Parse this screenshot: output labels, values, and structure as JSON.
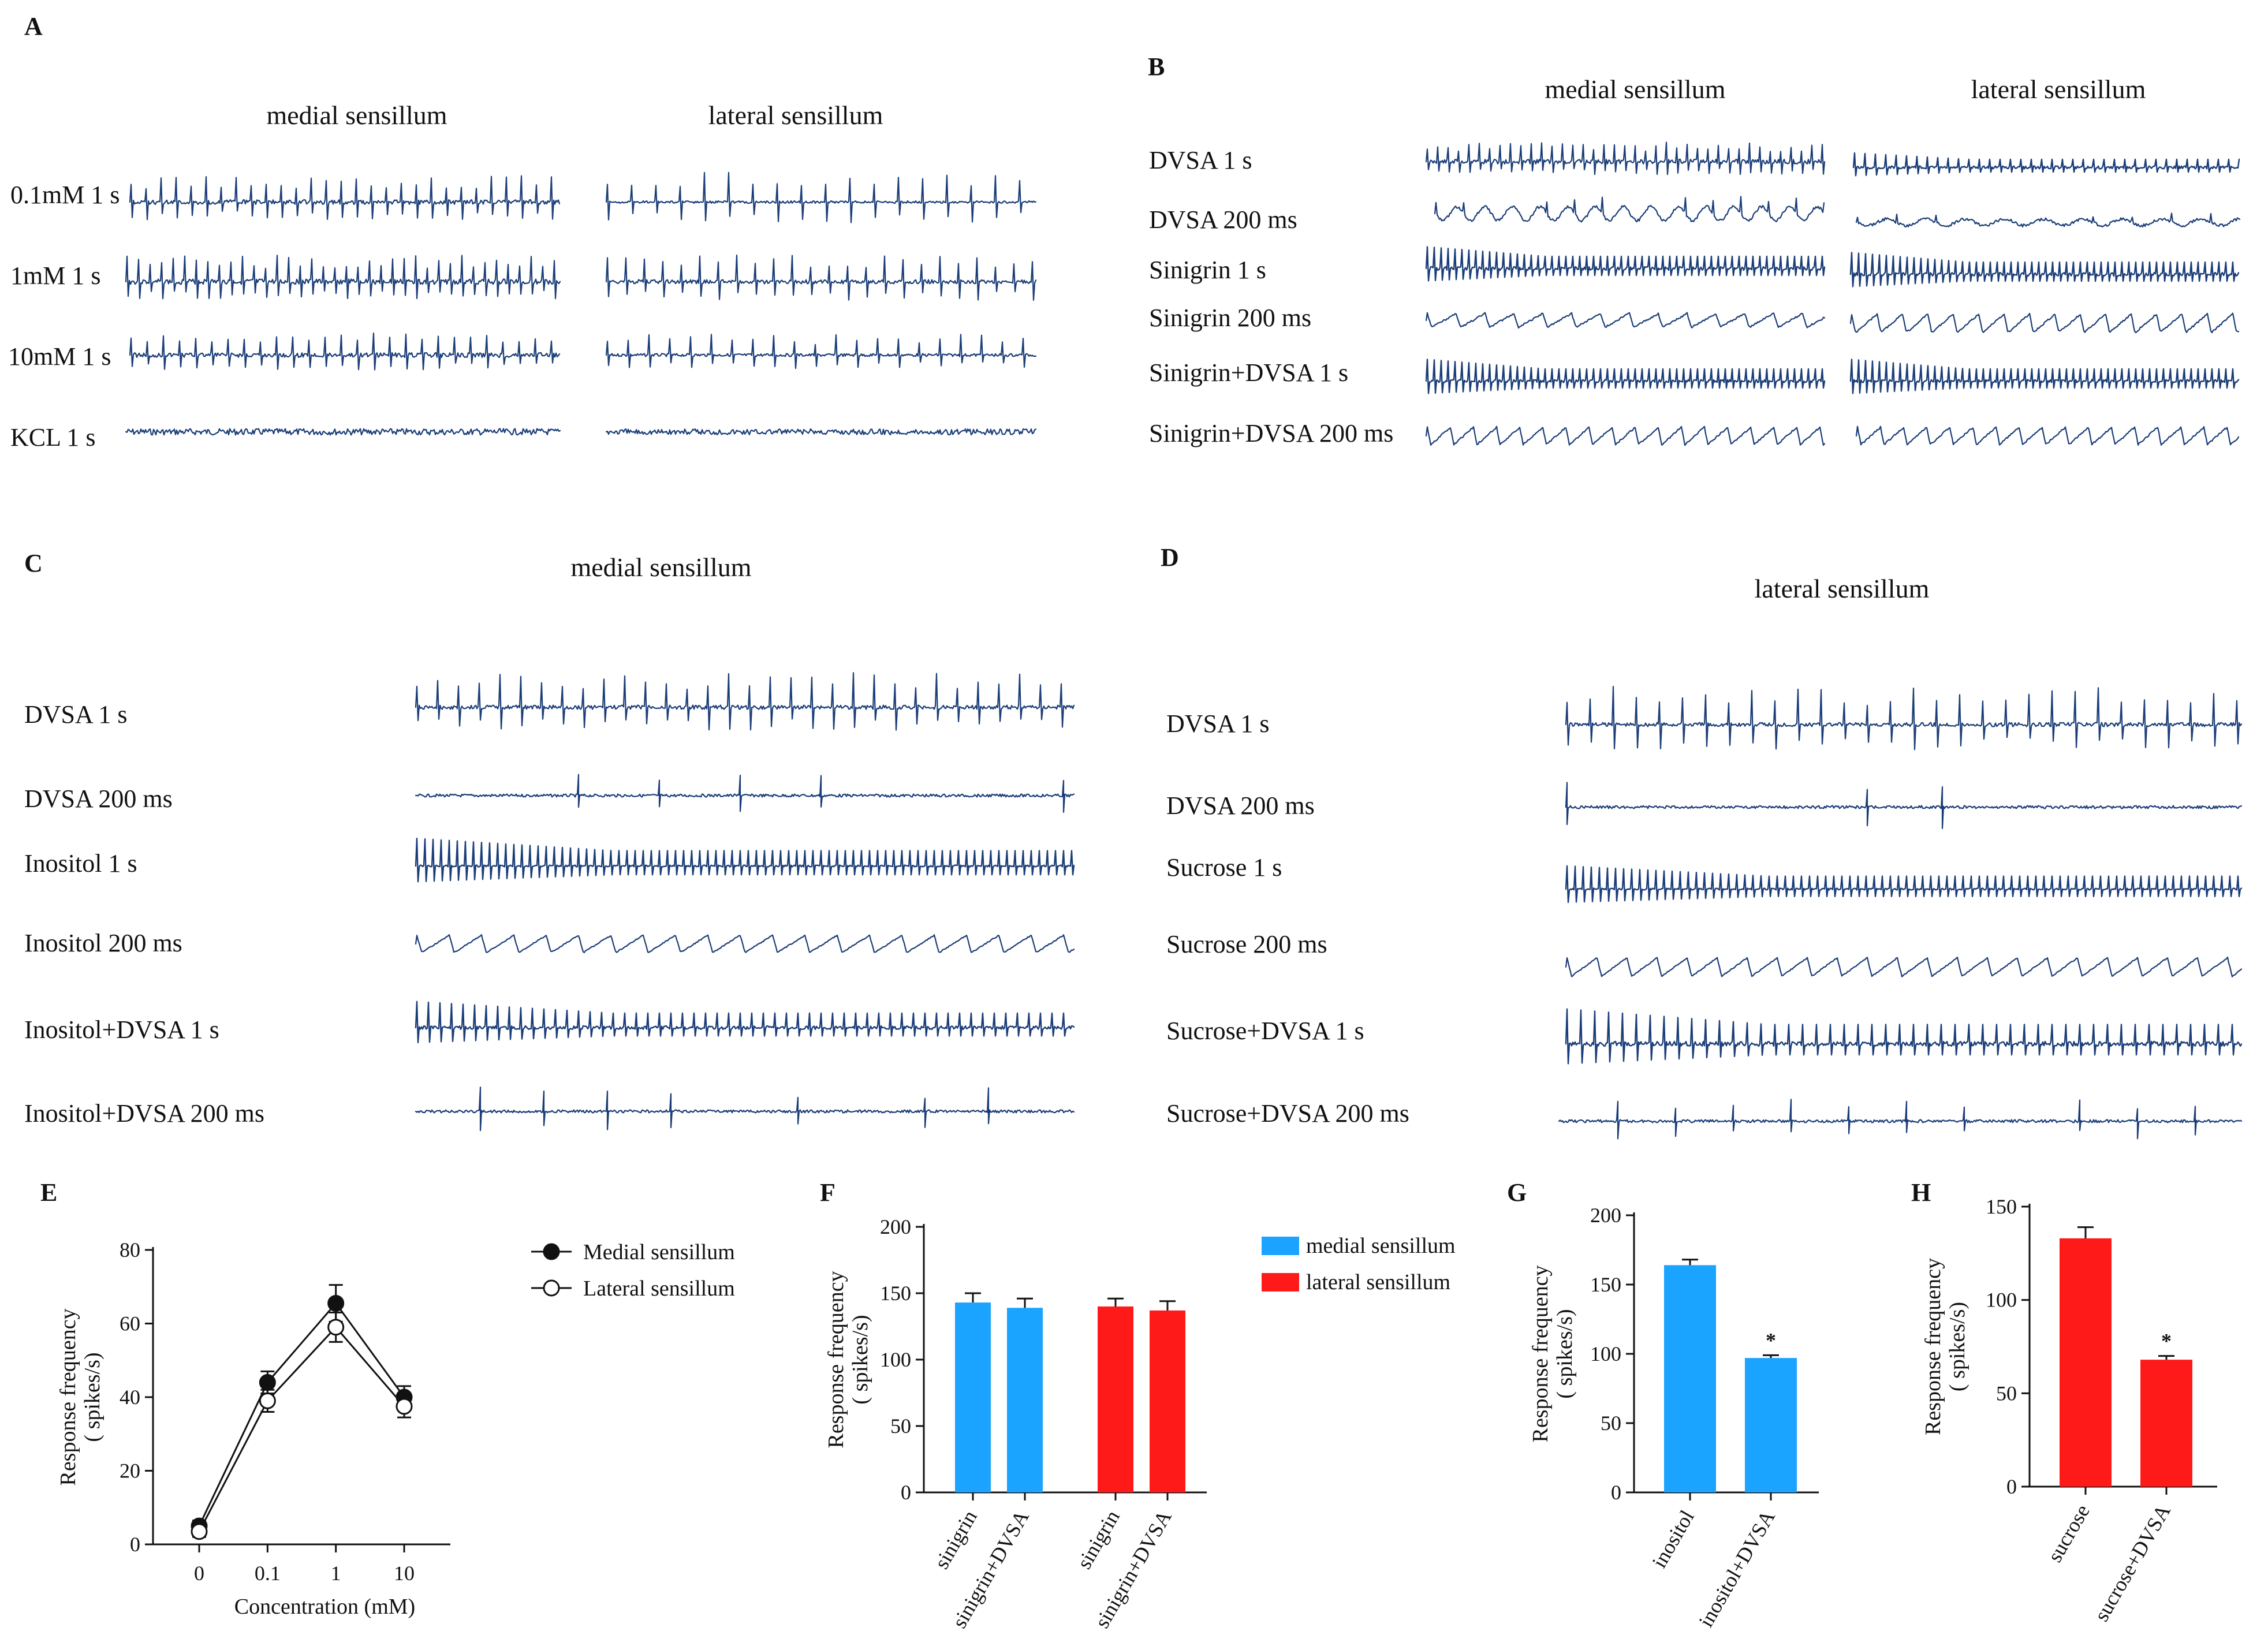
{
  "panels": {
    "A": {
      "label": "A",
      "columns": [
        "medial sensillum",
        "lateral sensillum"
      ],
      "rows": [
        "0.1mM 1 s",
        "1mM 1 s",
        "10mM 1 s",
        "KCL 1 s"
      ]
    },
    "B": {
      "label": "B",
      "columns": [
        "medial sensillum",
        "lateral sensillum"
      ],
      "rows": [
        "DVSA 1 s",
        "DVSA 200 ms",
        "Sinigrin 1 s",
        "Sinigrin 200 ms",
        "Sinigrin+DVSA 1 s",
        "Sinigrin+DVSA 200 ms"
      ]
    },
    "C": {
      "label": "C",
      "title": "medial sensillum",
      "rows": [
        "DVSA 1 s",
        "DVSA 200 ms",
        "Inositol 1 s",
        "Inositol 200 ms",
        "Inositol+DVSA 1 s",
        "Inositol+DVSA 200 ms"
      ]
    },
    "D": {
      "label": "D",
      "title": "lateral sensillum",
      "rows": [
        "DVSA 1 s",
        "DVSA 200 ms",
        "Sucrose 1 s",
        "Sucrose 200 ms",
        "Sucrose+DVSA 1 s",
        "Sucrose+DVSA 200 ms"
      ]
    }
  },
  "colors": {
    "trace": "#1a3d78",
    "medial": "#1aa3ff",
    "lateral": "#ff1a1a",
    "axis": "#111111"
  },
  "chart_data": [
    {
      "panel": "E",
      "type": "line",
      "xlabel": "Concentration (mM)",
      "ylabel": "Response frequency",
      "yunit": "( spikes/s)",
      "categories": [
        "0",
        "0.1",
        "1",
        "10"
      ],
      "ylim": [
        0,
        80
      ],
      "yticks": [
        "0",
        "20",
        "40",
        "60",
        "80"
      ],
      "series": [
        {
          "name": "Medial sensillum",
          "marker": "filled",
          "values": [
            5,
            44,
            65.5,
            40
          ],
          "errors": [
            1.5,
            3,
            5,
            3
          ]
        },
        {
          "name": "Lateral sensillum",
          "marker": "open",
          "values": [
            3.5,
            39,
            59,
            37.5
          ],
          "errors": [
            1.5,
            3,
            4,
            3
          ]
        }
      ]
    },
    {
      "panel": "F",
      "type": "bar",
      "ylabel": "Response frequency",
      "yunit": "( spikes/s)",
      "categories": [
        "sinigrin",
        "sinigrin+DVSA",
        "sinigrin",
        "sinigrin+DVSA"
      ],
      "values": [
        143,
        139,
        140,
        137
      ],
      "errors": [
        7,
        7,
        6,
        7
      ],
      "groups": [
        "medial",
        "medial",
        "lateral",
        "lateral"
      ],
      "legend": [
        "medial sensillum",
        "lateral sensillum"
      ],
      "ylim": [
        0,
        200
      ],
      "yticks": [
        "0",
        "50",
        "100",
        "150",
        "200"
      ]
    },
    {
      "panel": "G",
      "type": "bar",
      "ylabel": "Response frequency",
      "yunit": "( spikes/s)",
      "categories": [
        "inositol",
        "inositol+DVSA"
      ],
      "values": [
        164,
        97
      ],
      "errors": [
        4,
        2
      ],
      "annotations": [
        "",
        "*"
      ],
      "ylim": [
        0,
        200
      ],
      "yticks": [
        "0",
        "50",
        "100",
        "150",
        "200"
      ]
    },
    {
      "panel": "H",
      "type": "bar",
      "ylabel": "Response frequency",
      "yunit": "( spikes/s)",
      "categories": [
        "sucrose",
        "sucrose+DVSA"
      ],
      "values": [
        133,
        68
      ],
      "errors": [
        6,
        2
      ],
      "annotations": [
        "",
        "*"
      ],
      "ylim": [
        0,
        150
      ],
      "yticks": [
        "0",
        "50",
        "100",
        "150"
      ]
    }
  ]
}
